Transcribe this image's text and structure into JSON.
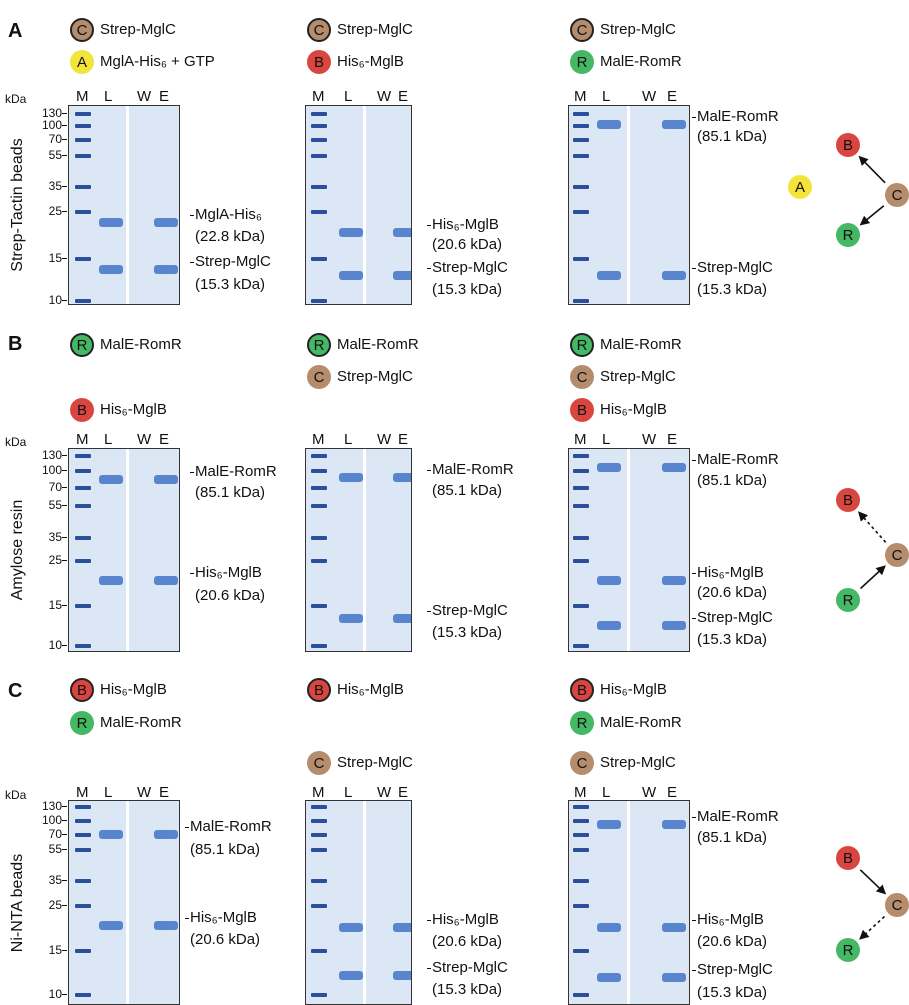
{
  "panels": [
    {
      "letter": "A",
      "row_label": "Strep-Tactin beads",
      "kda_unit": "kDa",
      "markers": [
        130,
        100,
        70,
        55,
        35,
        25,
        15,
        10
      ],
      "gels": [
        {
          "legend": [
            {
              "badge": "C",
              "name": "Strep-MglC"
            },
            {
              "badge": "A",
              "name": "MglA-His₆ + GTP"
            }
          ],
          "lanes": [
            "M",
            "L",
            "W",
            "E"
          ],
          "annotations": [
            "MglA-His₆",
            "(22.8 kDa)",
            "Strep-MglC",
            "(15.3 kDa)"
          ]
        },
        {
          "legend": [
            {
              "badge": "C",
              "name": "Strep-MglC"
            },
            {
              "badge": "B",
              "name": "His₆-MglB"
            }
          ],
          "lanes": [
            "M",
            "L",
            "W",
            "E"
          ],
          "annotations": [
            "His₆-MglB",
            "(20.6 kDa)",
            "Strep-MglC",
            "(15.3 kDa)"
          ]
        },
        {
          "legend": [
            {
              "badge": "C",
              "name": "Strep-MglC"
            },
            {
              "badge": "R",
              "name": "MalE-RomR"
            }
          ],
          "lanes": [
            "M",
            "L",
            "W",
            "E"
          ],
          "annotations": [
            "MalE-RomR",
            "(85.1 kDa)",
            "Strep-MglC",
            "(15.3 kDa)"
          ]
        }
      ],
      "diagram": {
        "nodes": [
          "B",
          "A",
          "C",
          "R"
        ]
      }
    },
    {
      "letter": "B",
      "row_label": "Amylose resin",
      "kda_unit": "kDa",
      "markers": [
        130,
        100,
        70,
        55,
        35,
        25,
        15,
        10
      ],
      "gels": [
        {
          "legend": [
            {
              "badge": "R",
              "name": "MalE-RomR"
            },
            {
              "badge": "B",
              "name": "His₆-MglB"
            }
          ],
          "lanes": [
            "M",
            "L",
            "W",
            "E"
          ],
          "annotations": [
            "MalE-RomR",
            "(85.1 kDa)",
            "His₆-MglB",
            "(20.6 kDa)"
          ]
        },
        {
          "legend": [
            {
              "badge": "R",
              "name": "MalE-RomR"
            },
            {
              "badge": "C",
              "name": "Strep-MglC"
            }
          ],
          "lanes": [
            "M",
            "L",
            "W",
            "E"
          ],
          "annotations": [
            "MalE-RomR",
            "(85.1 kDa)",
            "Strep-MglC",
            "(15.3 kDa)"
          ]
        },
        {
          "legend": [
            {
              "badge": "R",
              "name": "MalE-RomR"
            },
            {
              "badge": "C",
              "name": "Strep-MglC"
            },
            {
              "badge": "B",
              "name": "His₆-MglB"
            }
          ],
          "lanes": [
            "M",
            "L",
            "W",
            "E"
          ],
          "annotations": [
            "MalE-RomR",
            "(85.1 kDa)",
            "His₆-MglB",
            "(20.6 kDa)",
            "Strep-MglC",
            "(15.3 kDa)"
          ]
        }
      ],
      "diagram": {
        "nodes": [
          "B",
          "C",
          "R"
        ]
      }
    },
    {
      "letter": "C",
      "row_label": "Ni-NTA beads",
      "kda_unit": "kDa",
      "markers": [
        130,
        100,
        70,
        55,
        35,
        25,
        15,
        10
      ],
      "gels": [
        {
          "legend": [
            {
              "badge": "B",
              "name": "His₆-MglB"
            },
            {
              "badge": "R",
              "name": "MalE-RomR"
            }
          ],
          "lanes": [
            "M",
            "L",
            "W",
            "E"
          ],
          "annotations": [
            "MalE-RomR",
            "(85.1 kDa)",
            "His₆-MglB",
            "(20.6 kDa)"
          ]
        },
        {
          "legend": [
            {
              "badge": "B",
              "name": "His₆-MglB"
            },
            {
              "badge": "C",
              "name": "Strep-MglC"
            }
          ],
          "lanes": [
            "M",
            "L",
            "W",
            "E"
          ],
          "annotations": [
            "His₆-MglB",
            "(20.6 kDa)",
            "Strep-MglC",
            "(15.3 kDa)"
          ]
        },
        {
          "legend": [
            {
              "badge": "B",
              "name": "His₆-MglB"
            },
            {
              "badge": "R",
              "name": "MalE-RomR"
            },
            {
              "badge": "C",
              "name": "Strep-MglC"
            }
          ],
          "lanes": [
            "M",
            "L",
            "W",
            "E"
          ],
          "annotations": [
            "MalE-RomR",
            "(85.1 kDa)",
            "His₆-MglB",
            "(20.6 kDa)",
            "Strep-MglC",
            "(15.3 kDa)"
          ]
        }
      ],
      "diagram": {
        "nodes": [
          "B",
          "C",
          "R"
        ]
      }
    }
  ]
}
